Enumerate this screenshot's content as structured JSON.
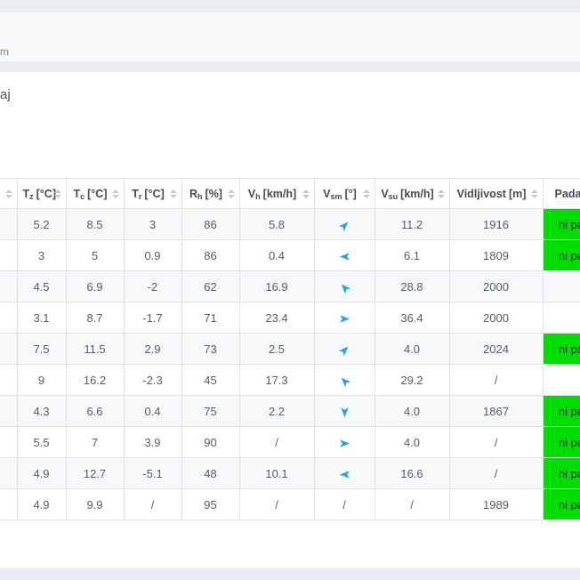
{
  "page": {
    "nav_fragment": "m",
    "heading_fragment": "aj"
  },
  "colors": {
    "band_bg": "#e9edf3",
    "navbar_bg": "#f8f9fb",
    "border": "#dee2e6",
    "header_text": "#444b52",
    "body_text": "#565c63",
    "precip_green": "#00dd00",
    "arrow_blue": "#29a3e3"
  },
  "table": {
    "columns": [
      {
        "main": "",
        "sub": "",
        "unit": ""
      },
      {
        "main": "T",
        "sub": "z",
        "unit": "[°C]"
      },
      {
        "main": "T",
        "sub": "c",
        "unit": "[°C]"
      },
      {
        "main": "T",
        "sub": "r",
        "unit": "[°C]"
      },
      {
        "main": "R",
        "sub": "h",
        "unit": "[%]"
      },
      {
        "main": "V",
        "sub": "h",
        "unit": "[km/h]"
      },
      {
        "main": "V",
        "sub": "sm",
        "unit": "[°]"
      },
      {
        "main": "V",
        "sub": "su",
        "unit": "[km/h]"
      },
      {
        "main": "Vidljivost",
        "sub": "",
        "unit": "[m]"
      },
      {
        "main": "Padavine",
        "sub": "",
        "unit": ""
      }
    ],
    "rows": [
      {
        "tz": "5.2",
        "tc": "8.5",
        "tr": "3",
        "rh": "86",
        "vh": "5.8",
        "vsm_deg": 45,
        "vsu": "11.2",
        "vid": "1916",
        "pad": "ni padavin",
        "pad_green": true
      },
      {
        "tz": "3",
        "tc": "5",
        "tr": "0.9",
        "rh": "86",
        "vh": "0.4",
        "vsm_deg": 270,
        "vsu": "6.1",
        "vid": "1809",
        "pad": "ni padavin",
        "pad_green": true
      },
      {
        "tz": "4.5",
        "tc": "6.9",
        "tr": "-2",
        "rh": "62",
        "vh": "16.9",
        "vsm_deg": 315,
        "vsu": "28.8",
        "vid": "2000",
        "pad": "/",
        "pad_green": false
      },
      {
        "tz": "3.1",
        "tc": "8.7",
        "tr": "-1.7",
        "rh": "71",
        "vh": "23.4",
        "vsm_deg": 90,
        "vsu": "36.4",
        "vid": "2000",
        "pad": "/",
        "pad_green": false
      },
      {
        "tz": "7.5",
        "tc": "11.5",
        "tr": "2.9",
        "rh": "73",
        "vh": "2.5",
        "vsm_deg": 45,
        "vsu": "4.0",
        "vid": "2024",
        "pad": "ni padavin",
        "pad_green": true
      },
      {
        "tz": "9",
        "tc": "16.2",
        "tr": "-2.3",
        "rh": "45",
        "vh": "17.3",
        "vsm_deg": 315,
        "vsu": "29.2",
        "vid": "/",
        "pad": "/",
        "pad_green": false
      },
      {
        "tz": "4.3",
        "tc": "6.6",
        "tr": "0.4",
        "rh": "75",
        "vh": "2.2",
        "vsm_deg": 180,
        "vsu": "4.0",
        "vid": "1867",
        "pad": "ni padavin",
        "pad_green": true
      },
      {
        "tz": "5.5",
        "tc": "7",
        "tr": "3.9",
        "rh": "90",
        "vh": "/",
        "vsm_deg": 90,
        "vsu": "4.0",
        "vid": "/",
        "pad": "ni padavin",
        "pad_green": true
      },
      {
        "tz": "4.9",
        "tc": "12.7",
        "tr": "-5.1",
        "rh": "48",
        "vh": "10.1",
        "vsm_deg": 270,
        "vsu": "16.6",
        "vid": "/",
        "pad": "ni padavin",
        "pad_green": true
      },
      {
        "tz": "4.9",
        "tc": "9.9",
        "tr": "/",
        "rh": "95",
        "vh": "/",
        "vsm_deg": null,
        "vsu": "/",
        "vid": "1989",
        "pad": "ni padavin",
        "pad_green": true
      }
    ]
  }
}
